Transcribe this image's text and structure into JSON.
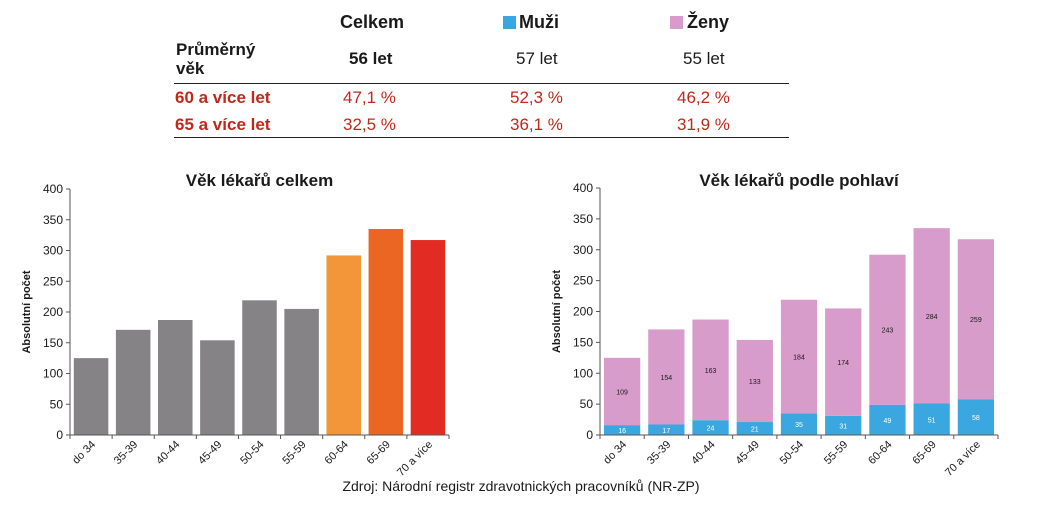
{
  "summary_table": {
    "headers": {
      "total": "Celkem",
      "men": "Muži",
      "women": "Ženy"
    },
    "legend_colors": {
      "men": "#3aa7e0",
      "women": "#d89ccb"
    },
    "rows": [
      {
        "label": "Průměrný věk",
        "label_line1": "Průměrný",
        "label_line2": "věk",
        "total": "56 let",
        "men": "57 let",
        "women": "55 let"
      },
      {
        "label": "60 a více let",
        "total": "47,1 %",
        "men": "52,3 %",
        "women": "46,2 %"
      },
      {
        "label": "65 a více let",
        "total": "32,5 %",
        "men": "36,1 %",
        "women": "31,9 %"
      }
    ]
  },
  "source_note": "Zdroj: Národní registr zdravotnických pracovníků (NR-ZP)",
  "chart_data": [
    {
      "type": "bar",
      "title": "Věk lékařů celkem",
      "xlabel": "",
      "ylabel": "Absolutní počet",
      "ylim": [
        0,
        400
      ],
      "yticks": [
        0,
        50,
        100,
        150,
        200,
        250,
        300,
        350,
        400
      ],
      "grid": false,
      "categories": [
        "do 34",
        "35-39",
        "40-44",
        "45-49",
        "50-54",
        "55-59",
        "60-64",
        "65-69",
        "70 a více"
      ],
      "values": [
        125,
        171,
        187,
        154,
        219,
        205,
        292,
        335,
        317
      ],
      "colors": [
        "#858386",
        "#858386",
        "#858386",
        "#858386",
        "#858386",
        "#858386",
        "#f39539",
        "#eb6523",
        "#e22b22"
      ]
    },
    {
      "type": "bar",
      "stacked": true,
      "title": "Věk lékařů podle pohlaví",
      "xlabel": "",
      "ylabel": "Absolutní počet",
      "ylim": [
        0,
        400
      ],
      "yticks": [
        0,
        50,
        100,
        150,
        200,
        250,
        300,
        350,
        400
      ],
      "grid": false,
      "categories": [
        "do 34",
        "35-39",
        "40-44",
        "45-49",
        "50-54",
        "55-59",
        "60-64",
        "65-69",
        "70 a více"
      ],
      "series": [
        {
          "name": "Muži",
          "color": "#3aa7e0",
          "values": [
            16,
            17,
            24,
            21,
            35,
            31,
            49,
            51,
            58
          ]
        },
        {
          "name": "Ženy",
          "color": "#d89ccb",
          "values": [
            109,
            154,
            163,
            133,
            184,
            174,
            243,
            284,
            259
          ]
        }
      ]
    }
  ]
}
